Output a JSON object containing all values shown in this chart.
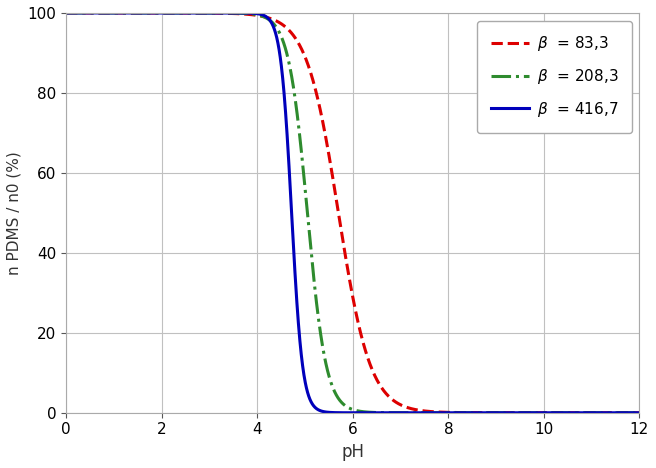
{
  "title": "",
  "xlabel": "pH",
  "ylabel": "n PDMS / n0 (%)",
  "xlim": [
    0,
    12
  ],
  "ylim": [
    0,
    100
  ],
  "xticks": [
    0,
    2,
    4,
    6,
    8,
    10,
    12
  ],
  "yticks": [
    0,
    20,
    40,
    60,
    80,
    100
  ],
  "curves_params": [
    {
      "pH_mid": 5.7,
      "k": 1.3,
      "color": "#dd0000",
      "linestyle": "dashed",
      "lw": 2.2,
      "label": "$\\beta$  = 83,3"
    },
    {
      "pH_mid": 5.05,
      "k": 2.2,
      "color": "#2e8b2e",
      "linestyle": "dashdot",
      "lw": 2.2,
      "label": "$\\beta$  = 208,3"
    },
    {
      "pH_mid": 4.72,
      "k": 3.8,
      "color": "#0000bb",
      "linestyle": "solid",
      "lw": 2.2,
      "label": "$\\beta$  = 416,7"
    }
  ],
  "background_color": "#ffffff",
  "grid_color": "#c0c0c0"
}
